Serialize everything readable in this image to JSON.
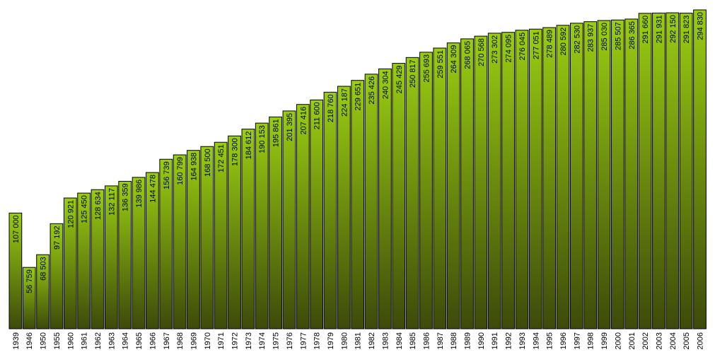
{
  "chart_data": {
    "type": "bar",
    "title": "",
    "xlabel": "",
    "ylabel": "",
    "ylim": [
      0,
      300000
    ],
    "grid": false,
    "legend": "none",
    "colors": {
      "bar_top": "#9acd12",
      "bar_bottom": "#3d4a0a",
      "outline": "#000000"
    },
    "categories": [
      "1939",
      "1946",
      "1950",
      "1955",
      "1960",
      "1961",
      "1962",
      "1963",
      "1964",
      "1965",
      "1966",
      "1967",
      "1968",
      "1969",
      "1970",
      "1971",
      "1972",
      "1973",
      "1974",
      "1975",
      "1976",
      "1977",
      "1978",
      "1979",
      "1980",
      "1981",
      "1982",
      "1983",
      "1984",
      "1985",
      "1986",
      "1987",
      "1988",
      "1989",
      "1990",
      "1991",
      "1992",
      "1993",
      "1994",
      "1995",
      "1996",
      "1997",
      "1998",
      "1999",
      "2000",
      "2001",
      "2002",
      "2003",
      "2004",
      "2005",
      "2006"
    ],
    "values": [
      107000,
      56759,
      68503,
      97192,
      120921,
      125450,
      128634,
      132117,
      136359,
      139986,
      144478,
      156739,
      160799,
      164938,
      168500,
      172451,
      178300,
      184612,
      190153,
      195861,
      201395,
      207416,
      211600,
      218760,
      224187,
      229651,
      235426,
      240304,
      245429,
      250817,
      255693,
      259551,
      264309,
      268065,
      270568,
      273302,
      274095,
      276045,
      277051,
      278489,
      280592,
      282530,
      283937,
      285030,
      285507,
      286365,
      291660,
      291931,
      292150,
      291823,
      294830
    ],
    "value_labels": [
      "107 000",
      "56 759",
      "68 503",
      "97 192",
      "120 921",
      "125 450",
      "128 634",
      "132 117",
      "136 359",
      "139 986",
      "144 478",
      "156 739",
      "160 799",
      "164 938",
      "168 500",
      "172 451",
      "178 300",
      "184 612",
      "190 153",
      "195 861",
      "201 395",
      "207 416",
      "211 600",
      "218 760",
      "224 187",
      "229 651",
      "235 426",
      "240 304",
      "245 429",
      "250 817",
      "255 693",
      "259 551",
      "264 309",
      "268 065",
      "270 568",
      "273 302",
      "274 095",
      "276 045",
      "277 051",
      "278 489",
      "280 592",
      "282 530",
      "283 937",
      "285 030",
      "285 507",
      "286 365",
      "291 660",
      "291 931",
      "292 150",
      "291 823",
      "294 830"
    ]
  }
}
